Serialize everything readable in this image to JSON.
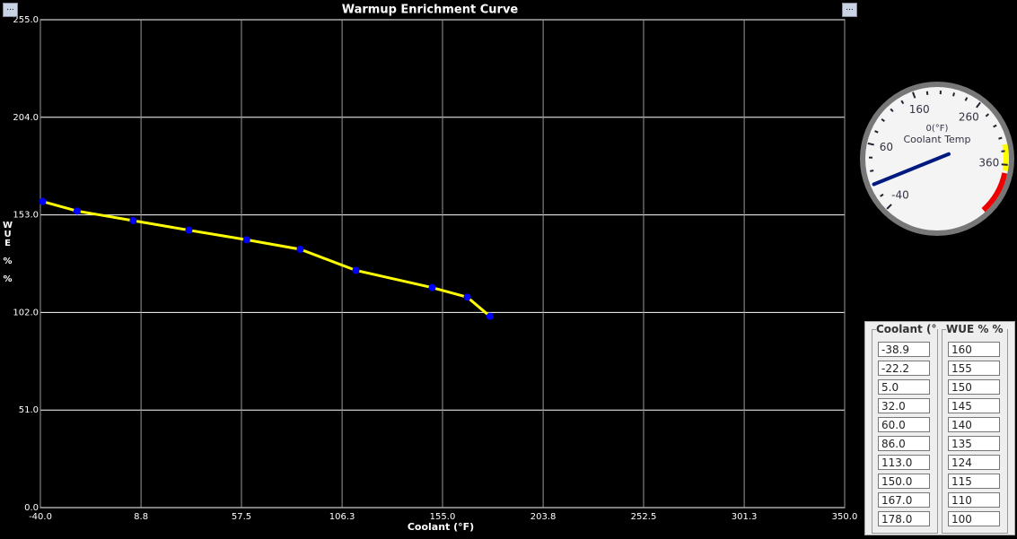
{
  "chart_data": {
    "type": "line",
    "title": "Warmup Enrichment Curve",
    "x_label": "Coolant (°F)",
    "y_label": "WUE % %",
    "x": [
      -38.9,
      -22.2,
      5.0,
      32.0,
      60.0,
      86.0,
      113.0,
      150.0,
      167.0,
      178.0
    ],
    "values": [
      160,
      155,
      150,
      145,
      140,
      135,
      124,
      115,
      110,
      100
    ],
    "color": "#ffff00",
    "marker_color": "#0000ff",
    "xlim": [
      -40,
      350
    ],
    "ylim": [
      0,
      255
    ],
    "xticks": [
      {
        "value": -40,
        "label": "-40.0"
      },
      {
        "value": 8.8,
        "label": "8.8"
      },
      {
        "value": 57.5,
        "label": "57.5"
      },
      {
        "value": 106.3,
        "label": "106.3"
      },
      {
        "value": 155,
        "label": "155.0"
      },
      {
        "value": 203.8,
        "label": "203.8"
      },
      {
        "value": 252.5,
        "label": "252.5"
      },
      {
        "value": 301.3,
        "label": "301.3"
      },
      {
        "value": 350,
        "label": "350.0"
      }
    ],
    "yticks": [
      {
        "value": 0,
        "label": "0.0"
      },
      {
        "value": 51,
        "label": "51.0"
      },
      {
        "value": 102,
        "label": "102.0"
      },
      {
        "value": 153,
        "label": "153.0"
      },
      {
        "value": 204,
        "label": "204.0"
      },
      {
        "value": 255,
        "label": "255.0"
      }
    ],
    "grid": true
  },
  "buttons": [
    "...",
    "..."
  ],
  "gauge": {
    "readout": "0(°F)",
    "label": "Coolant Temp",
    "value": 0,
    "ticks": [
      -40,
      60,
      160,
      260,
      360
    ]
  },
  "table": {
    "headers": [
      "Coolant (°F",
      "WUE % %"
    ],
    "rows": [
      [
        "-38.9",
        "160"
      ],
      [
        "-22.2",
        "155"
      ],
      [
        "5.0",
        "150"
      ],
      [
        "32.0",
        "145"
      ],
      [
        "60.0",
        "140"
      ],
      [
        "86.0",
        "135"
      ],
      [
        "113.0",
        "124"
      ],
      [
        "150.0",
        "115"
      ],
      [
        "167.0",
        "110"
      ],
      [
        "178.0",
        "100"
      ]
    ]
  }
}
